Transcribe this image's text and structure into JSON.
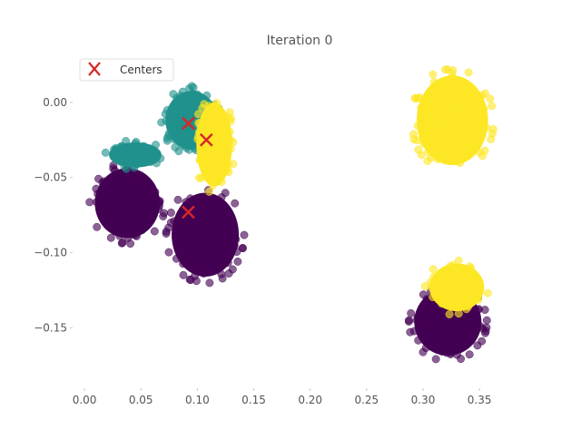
{
  "chart_data": {
    "type": "scatter",
    "title": "Iteration 0",
    "xlabel": "",
    "ylabel": "",
    "xlim": [
      -0.0105,
      0.3885
    ],
    "ylim": [
      -0.19,
      0.033
    ],
    "x_ticks": [
      0.0,
      0.05,
      0.1,
      0.15,
      0.2,
      0.25,
      0.3,
      0.35
    ],
    "x_tick_labels": [
      "0.00",
      "0.05",
      "0.10",
      "0.15",
      "0.20",
      "0.25",
      "0.30",
      "0.35"
    ],
    "y_ticks": [
      0.0,
      -0.05,
      -0.1,
      -0.15
    ],
    "y_tick_labels": [
      "0.00",
      "−0.05",
      "−0.10",
      "−0.15"
    ],
    "grid": false,
    "legend": {
      "position": "top-left",
      "entries": [
        "Centers"
      ]
    },
    "colors": {
      "purple": "#440154",
      "teal": "#21918c",
      "yellow": "#fde725",
      "centers": "#d62728"
    },
    "clusters": [
      {
        "label": 0,
        "color": "purple",
        "cx": 0.038,
        "cy": -0.067,
        "rx": 0.031,
        "ry": 0.025,
        "count": 300
      },
      {
        "label": 0,
        "color": "purple",
        "cx": 0.107,
        "cy": -0.088,
        "rx": 0.032,
        "ry": 0.03,
        "count": 320
      },
      {
        "label": 0,
        "color": "purple",
        "cx": 0.322,
        "cy": -0.146,
        "rx": 0.032,
        "ry": 0.024,
        "count": 260
      },
      {
        "label": 1,
        "color": "teal",
        "cx": 0.095,
        "cy": -0.012,
        "rx": 0.025,
        "ry": 0.021,
        "count": 230
      },
      {
        "label": 1,
        "color": "teal",
        "cx": 0.045,
        "cy": -0.035,
        "rx": 0.025,
        "ry": 0.009,
        "count": 70
      },
      {
        "label": 2,
        "color": "yellow",
        "cx": 0.115,
        "cy": -0.028,
        "rx": 0.017,
        "ry": 0.03,
        "count": 160
      },
      {
        "label": 2,
        "color": "yellow",
        "cx": 0.326,
        "cy": -0.012,
        "rx": 0.034,
        "ry": 0.032,
        "count": 330
      },
      {
        "label": 2,
        "color": "yellow",
        "cx": 0.33,
        "cy": -0.123,
        "rx": 0.026,
        "ry": 0.017,
        "count": 80
      }
    ],
    "centers": [
      {
        "x": 0.092,
        "y": -0.014
      },
      {
        "x": 0.108,
        "y": -0.025
      },
      {
        "x": 0.092,
        "y": -0.073
      }
    ]
  }
}
